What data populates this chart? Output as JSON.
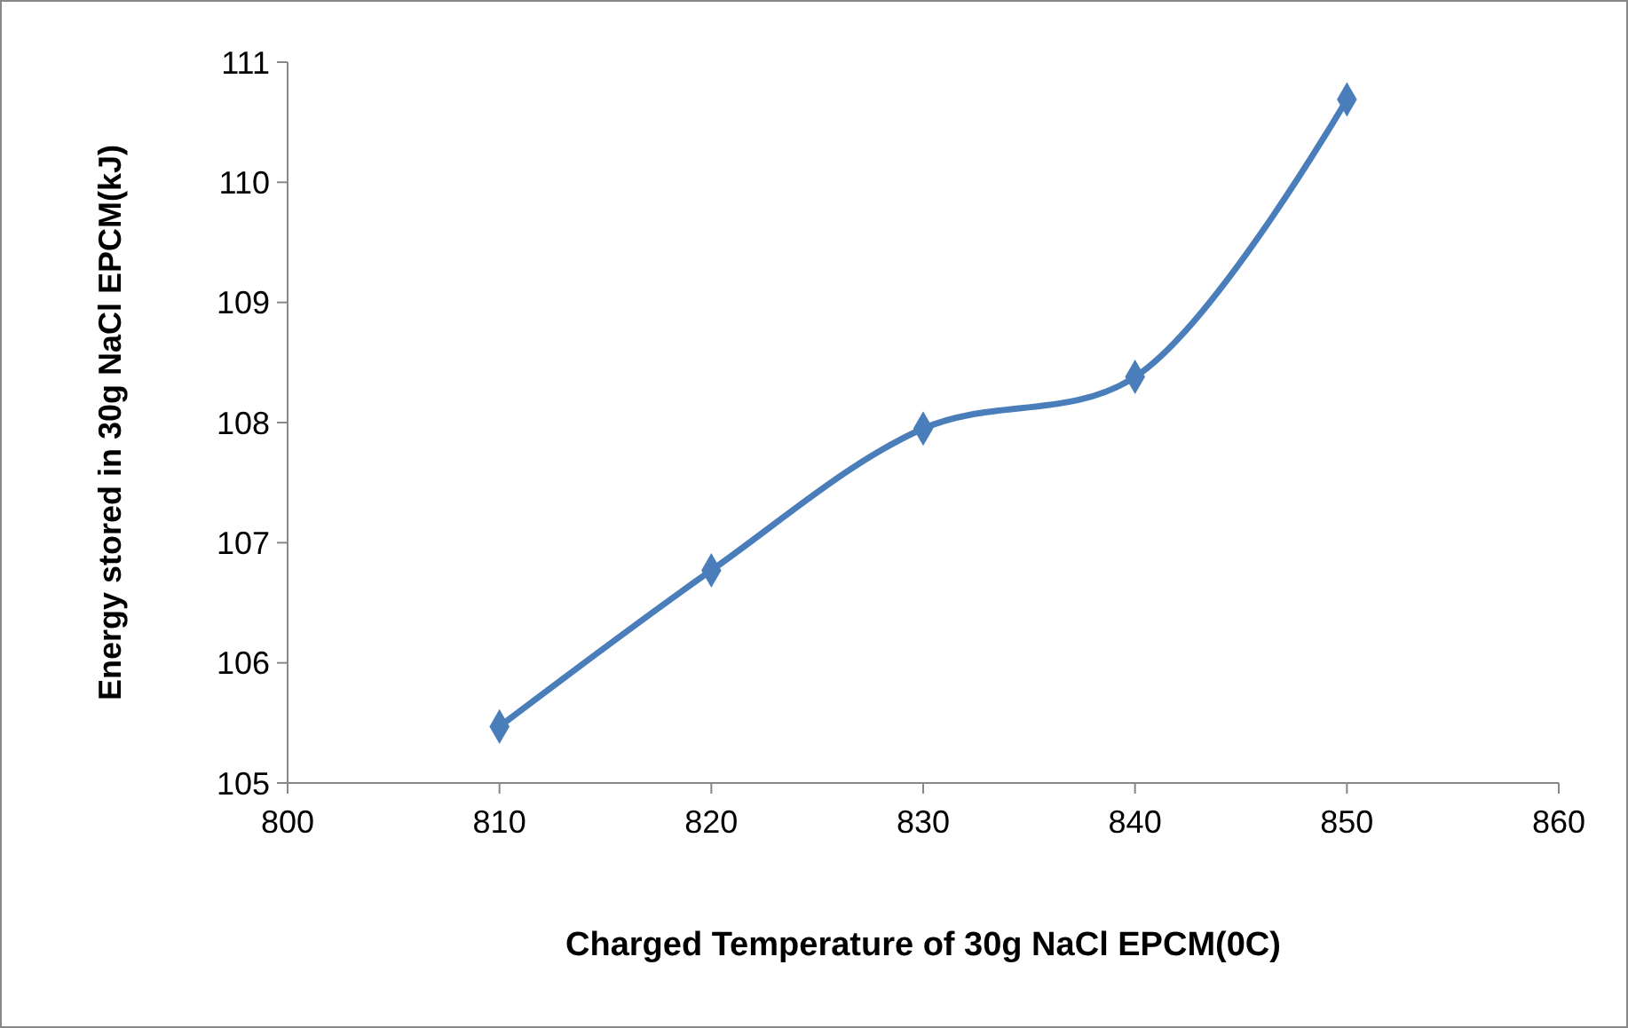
{
  "chart_data": {
    "type": "line",
    "xlabel": "Charged Temperature of 30g NaCl EPCM(0C)",
    "ylabel": "Energy stored in 30g NaCl EPCM(kJ)",
    "x": [
      810,
      820,
      830,
      840,
      850
    ],
    "series": [
      {
        "color": "#4a7ebb",
        "values": [
          105.47,
          106.77,
          107.95,
          108.38,
          110.69
        ]
      }
    ],
    "xlim": [
      800,
      860
    ],
    "xticks": [
      800,
      810,
      820,
      830,
      840,
      850,
      860
    ],
    "ylim": [
      105,
      111
    ],
    "yticks": [
      105,
      106,
      107,
      108,
      109,
      110,
      111
    ],
    "grid": false,
    "marker": "diamond",
    "line_style": "solid"
  }
}
